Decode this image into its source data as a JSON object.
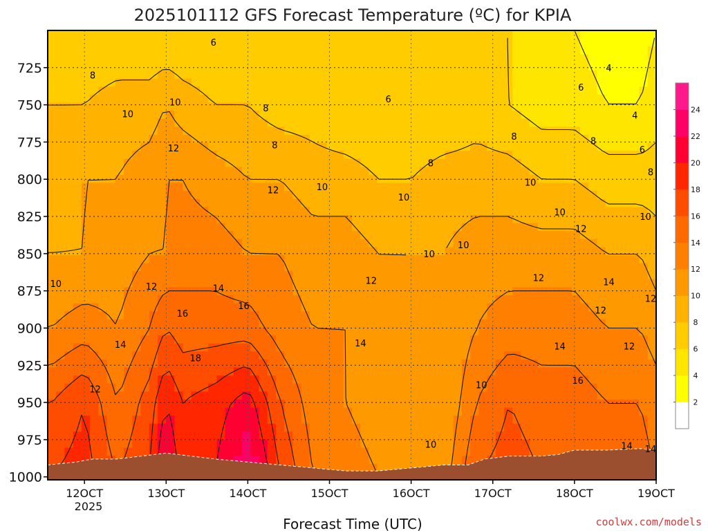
{
  "chart_data": {
    "type": "heatmap",
    "title": "2025101112 GFS Forecast Temperature (ºC) for KPIA",
    "xlabel": "Forecast Time (UTC)",
    "ylabel": "",
    "x_range": [
      115.5,
      190
    ],
    "y_range": [
      700,
      1002
    ],
    "x_ticks": [
      {
        "value": 120,
        "label": "12OCT"
      },
      {
        "value": 130,
        "label": "13OCT"
      },
      {
        "value": 140,
        "label": "14OCT"
      },
      {
        "value": 150,
        "label": "15OCT"
      },
      {
        "value": 160,
        "label": "16OCT"
      },
      {
        "value": 170,
        "label": "17OCT"
      },
      {
        "value": 180,
        "label": "18OCT"
      },
      {
        "value": 190,
        "label": "19OCT"
      }
    ],
    "year_label": "2025",
    "y_ticks": [
      725,
      750,
      775,
      800,
      825,
      850,
      875,
      900,
      925,
      950,
      975,
      1000
    ],
    "colorbar": {
      "levels": [
        2,
        4,
        6,
        8,
        10,
        12,
        14,
        16,
        18,
        20,
        22,
        24
      ],
      "colors": [
        "#ffffff",
        "#ffff00",
        "#ffe600",
        "#ffcc00",
        "#ffb300",
        "#ff9900",
        "#ff8000",
        "#ff6a00",
        "#ff4d00",
        "#ff2600",
        "#ff0033",
        "#ff0066",
        "#ff1a8c"
      ]
    },
    "temperature_field": {
      "times": [
        116,
        120,
        124,
        128,
        130,
        132,
        136,
        140,
        144,
        148,
        152,
        156,
        160,
        164,
        168,
        172,
        176,
        180,
        184,
        188,
        190
      ],
      "levels_hpa": [
        700,
        750,
        800,
        850,
        900,
        950,
        1000
      ],
      "values": [
        [
          6,
          6,
          6,
          6,
          6,
          6,
          6,
          6,
          6,
          6,
          6,
          6,
          6,
          6,
          6,
          6,
          4,
          4,
          3,
          3,
          4
        ],
        [
          8,
          8,
          9,
          9,
          10,
          9,
          8,
          8,
          7,
          7,
          6,
          6,
          6,
          6,
          7,
          6,
          5,
          5,
          4,
          4,
          5
        ],
        [
          9,
          10,
          10,
          11,
          12,
          12,
          11,
          10,
          10,
          9,
          9,
          8,
          8,
          9,
          9,
          9,
          8,
          8,
          7,
          7,
          7
        ],
        [
          10,
          10,
          11,
          12,
          12,
          13,
          13,
          12,
          12,
          11,
          11,
          10,
          10,
          10,
          11,
          11,
          11,
          11,
          10,
          10,
          9
        ],
        [
          12,
          13,
          12,
          14,
          16,
          15,
          15,
          15,
          13,
          12,
          12,
          11,
          10,
          10,
          12,
          13,
          13,
          13,
          12,
          12,
          11
        ],
        [
          16,
          18,
          14,
          17,
          20,
          18,
          19,
          21,
          16,
          13,
          12,
          11,
          10,
          10,
          14,
          16,
          15,
          15,
          14,
          14,
          13
        ],
        [
          18,
          19,
          16,
          18,
          23,
          19,
          20,
          24,
          18,
          14,
          13,
          12,
          11,
          11,
          16,
          17,
          16,
          16,
          15,
          15,
          14
        ]
      ]
    },
    "contour_labels": [
      {
        "text": "8",
        "x": 121,
        "y": 730
      },
      {
        "text": "6",
        "x": 135.8,
        "y": 708
      },
      {
        "text": "6",
        "x": 157.2,
        "y": 746
      },
      {
        "text": "4",
        "x": 184.2,
        "y": 725
      },
      {
        "text": "6",
        "x": 180.8,
        "y": 738
      },
      {
        "text": "4",
        "x": 187.4,
        "y": 757
      },
      {
        "text": "10",
        "x": 131.1,
        "y": 748
      },
      {
        "text": "8",
        "x": 142.2,
        "y": 752
      },
      {
        "text": "10",
        "x": 125.3,
        "y": 756
      },
      {
        "text": "8",
        "x": 143.3,
        "y": 777
      },
      {
        "text": "8",
        "x": 172.6,
        "y": 771
      },
      {
        "text": "8",
        "x": 182.3,
        "y": 774
      },
      {
        "text": "6",
        "x": 188.3,
        "y": 780
      },
      {
        "text": "8",
        "x": 162.4,
        "y": 789
      },
      {
        "text": "12",
        "x": 130.9,
        "y": 779
      },
      {
        "text": "8",
        "x": 189.5,
        "y": 795
      },
      {
        "text": "10",
        "x": 174.6,
        "y": 802
      },
      {
        "text": "12",
        "x": 143.1,
        "y": 807
      },
      {
        "text": "10",
        "x": 149.1,
        "y": 805
      },
      {
        "text": "10",
        "x": 159.1,
        "y": 812
      },
      {
        "text": "10",
        "x": 178.2,
        "y": 822
      },
      {
        "text": "10",
        "x": 188.7,
        "y": 825
      },
      {
        "text": "12",
        "x": 180.8,
        "y": 833
      },
      {
        "text": "10",
        "x": 166.4,
        "y": 844
      },
      {
        "text": "10",
        "x": 162.2,
        "y": 850
      },
      {
        "text": "12",
        "x": 175.6,
        "y": 866
      },
      {
        "text": "14",
        "x": 184.2,
        "y": 869
      },
      {
        "text": "10",
        "x": 116.5,
        "y": 870
      },
      {
        "text": "12",
        "x": 128.2,
        "y": 872
      },
      {
        "text": "14",
        "x": 136.4,
        "y": 873
      },
      {
        "text": "12",
        "x": 155.1,
        "y": 868
      },
      {
        "text": "16",
        "x": 139.5,
        "y": 885
      },
      {
        "text": "12",
        "x": 183.2,
        "y": 888
      },
      {
        "text": "12",
        "x": 190.6,
        "y": 880
      },
      {
        "text": "16",
        "x": 132,
        "y": 890
      },
      {
        "text": "14",
        "x": 124.4,
        "y": 911
      },
      {
        "text": "14",
        "x": 153.8,
        "y": 910
      },
      {
        "text": "14",
        "x": 178.2,
        "y": 912
      },
      {
        "text": "12",
        "x": 186.7,
        "y": 912
      },
      {
        "text": "18",
        "x": 133.6,
        "y": 920
      },
      {
        "text": "16",
        "x": 180.4,
        "y": 935
      },
      {
        "text": "10",
        "x": 168.6,
        "y": 938
      },
      {
        "text": "12",
        "x": 121.3,
        "y": 941
      },
      {
        "text": "10",
        "x": 162.4,
        "y": 978
      },
      {
        "text": "14",
        "x": 186.4,
        "y": 979
      },
      {
        "text": "14",
        "x": 192,
        "y": 981
      }
    ]
  }
}
